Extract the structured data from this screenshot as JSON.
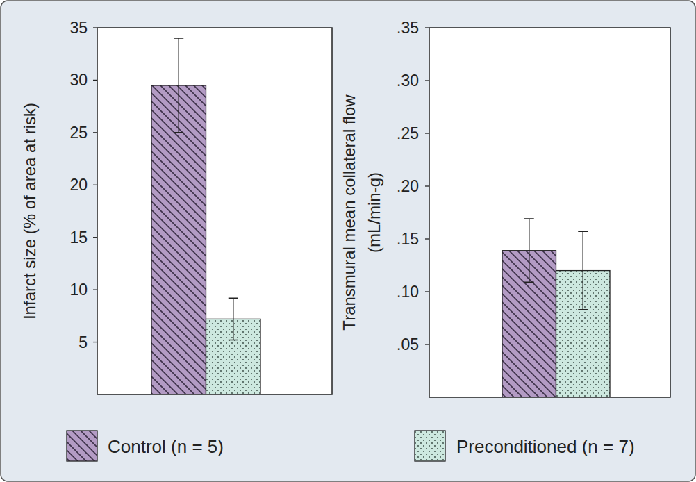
{
  "chart_data": [
    {
      "type": "bar",
      "ylabel": "Infarct size (% of area at risk)",
      "categories": [
        null
      ],
      "series": [
        {
          "name": "Control (n = 5)",
          "color": "#b39bc4",
          "values": [
            29.5
          ],
          "errors": [
            4.5
          ]
        },
        {
          "name": "Preconditioned (n = 7)",
          "color": "#cde8df",
          "values": [
            7.2
          ],
          "errors": [
            2.0
          ]
        }
      ],
      "ylim": [
        0,
        35
      ],
      "yticks": [
        5,
        10,
        15,
        20,
        25,
        30,
        35
      ],
      "grid": false,
      "legend": "bottom"
    },
    {
      "type": "bar",
      "ylabel": "Transmural mean collateral flow\n(mL/min-g)",
      "categories": [
        null
      ],
      "series": [
        {
          "color": "#b39bc4",
          "values": [
            0.139
          ],
          "errors": [
            0.03
          ]
        },
        {
          "color": "#cde8df",
          "values": [
            0.12
          ],
          "errors": [
            0.037
          ]
        }
      ],
      "ylim": [
        0,
        0.35
      ],
      "yticks": [
        {
          "value": 0.05,
          "label": ".05"
        },
        {
          "value": 0.1,
          "label": ".10"
        },
        {
          "value": 0.15,
          "label": ".15"
        },
        {
          "value": 0.2,
          "label": ".20"
        },
        {
          "value": 0.25,
          "label": ".25"
        },
        {
          "value": 0.3,
          "label": ".30"
        },
        {
          "value": 0.35,
          "label": ".35"
        }
      ],
      "grid": false
    }
  ]
}
